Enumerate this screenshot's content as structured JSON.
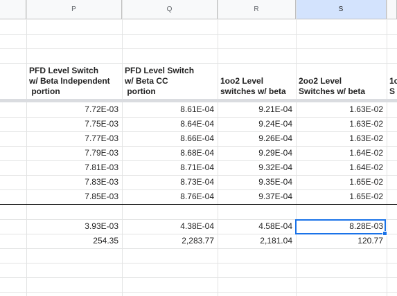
{
  "columns": [
    {
      "letter": "P",
      "selected": false
    },
    {
      "letter": "Q",
      "selected": false
    },
    {
      "letter": "R",
      "selected": false
    },
    {
      "letter": "S",
      "selected": true
    }
  ],
  "headers": {
    "P": "PFD Level Switch\nw/ Beta Independent\n portion",
    "Q": "PFD Level Switch\nw/ Beta CC\n portion",
    "R": "1oo2 Level\nswitches w/ beta",
    "S": "2oo2 Level\nSwitches w/ beta",
    "T_partial": "1c\nS"
  },
  "rows": [
    [
      "7.72E-03",
      "8.61E-04",
      "9.21E-04",
      "1.63E-02"
    ],
    [
      "7.75E-03",
      "8.64E-04",
      "9.24E-04",
      "1.63E-02"
    ],
    [
      "7.77E-03",
      "8.66E-04",
      "9.26E-04",
      "1.63E-02"
    ],
    [
      "7.79E-03",
      "8.68E-04",
      "9.29E-04",
      "1.64E-02"
    ],
    [
      "7.81E-03",
      "8.71E-04",
      "9.32E-04",
      "1.64E-02"
    ],
    [
      "7.83E-03",
      "8.73E-04",
      "9.35E-04",
      "1.65E-02"
    ],
    [
      "7.85E-03",
      "8.76E-04",
      "9.37E-04",
      "1.65E-02"
    ]
  ],
  "summary": [
    [
      "3.93E-03",
      "4.38E-04",
      "4.58E-04",
      "8.28E-03"
    ],
    [
      "254.35",
      "2,283.77",
      "2,181.04",
      "120.77"
    ]
  ],
  "colors": {
    "selection": "#1a73e8",
    "header_bg": "#f8f9fa",
    "selected_header_bg": "#d3e3fd"
  }
}
